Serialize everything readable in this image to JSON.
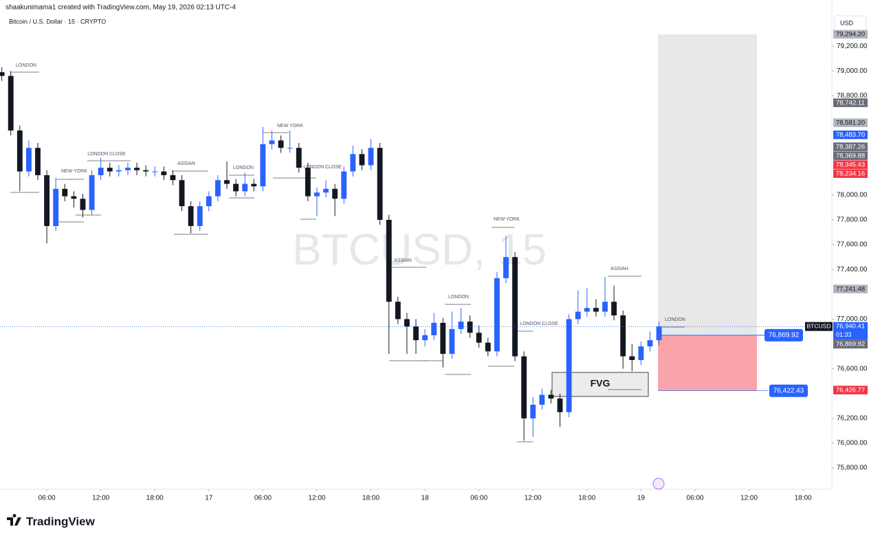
{
  "header": {
    "credit": "shaakunimama1 created with TradingView.com, May 19, 2026 02:13 UTC-4",
    "brand": "TradingView"
  },
  "chart_data": {
    "type": "candlestick",
    "title": "Bitcoin / U.S. Dollar · 15 · CRYPTO",
    "watermark": "BTCUSD, 15",
    "currency": "USD",
    "up_color": "#2962ff",
    "down_color": "#131722",
    "x": [
      1,
      2,
      3,
      4,
      5,
      6,
      7,
      8,
      9,
      10,
      11,
      12,
      13,
      14,
      15,
      16,
      17,
      18,
      19,
      20,
      21,
      22,
      23,
      24,
      25,
      26,
      27,
      28,
      29,
      30,
      31,
      32,
      33,
      34,
      35,
      36,
      37,
      38,
      39,
      40,
      41,
      42,
      43,
      44,
      45,
      46,
      47,
      48,
      49,
      50,
      51,
      52,
      53,
      54,
      55,
      56,
      57,
      58,
      59,
      60,
      61,
      62,
      63,
      64,
      65,
      66,
      67,
      68,
      69,
      70,
      71,
      72,
      73,
      74
    ],
    "open": [
      78990,
      78960,
      78520,
      78190,
      78380,
      78160,
      77750,
      78050,
      77990,
      77970,
      77880,
      78160,
      78220,
      78190,
      78200,
      78220,
      78200,
      78190,
      78190,
      78160,
      78120,
      77910,
      77750,
      77910,
      77990,
      78120,
      78090,
      78030,
      78090,
      78070,
      78410,
      78440,
      78380,
      78380,
      78220,
      77990,
      78020,
      78050,
      77970,
      78190,
      78330,
      78240,
      78380,
      77800,
      77140,
      77000,
      76940,
      76830,
      76870,
      76970,
      76720,
      76920,
      76980,
      76890,
      76810,
      76740,
      77330,
      77500,
      76700,
      76200,
      76310,
      76390,
      76360,
      76250,
      77000,
      77060,
      77090,
      77060,
      77140,
      77030,
      76700,
      76670,
      76780,
      76830
    ],
    "high": [
      79030,
      79000,
      78560,
      78440,
      78420,
      78200,
      78140,
      78090,
      78030,
      78010,
      78200,
      78300,
      78260,
      78240,
      78260,
      78260,
      78240,
      78230,
      78230,
      78200,
      78160,
      77950,
      77950,
      78030,
      78160,
      78270,
      78130,
      78180,
      78130,
      78550,
      78520,
      78480,
      78520,
      78420,
      78260,
      78060,
      78120,
      78090,
      78230,
      78400,
      78370,
      78450,
      78420,
      77840,
      77180,
      77050,
      77000,
      76920,
      77050,
      77010,
      77060,
      77090,
      77030,
      76950,
      76850,
      77380,
      77670,
      77540,
      76740,
      76370,
      76440,
      76430,
      76400,
      77040,
      77230,
      77250,
      77160,
      77340,
      77270,
      77070,
      76800,
      76820,
      76900,
      76980
    ],
    "low": [
      78920,
      78480,
      78030,
      78150,
      78120,
      77610,
      77710,
      77950,
      77900,
      77820,
      77840,
      78120,
      78150,
      78150,
      78160,
      78160,
      78150,
      78150,
      78120,
      78080,
      77870,
      77690,
      77710,
      77870,
      77950,
      78050,
      77990,
      77990,
      78030,
      78030,
      78370,
      78340,
      78340,
      78180,
      77950,
      77830,
      77980,
      77830,
      77930,
      78150,
      78200,
      78200,
      77760,
      76720,
      76960,
      76720,
      76720,
      76780,
      76830,
      76610,
      76680,
      76880,
      76850,
      76770,
      76700,
      76700,
      77290,
      76660,
      76020,
      76050,
      76270,
      76320,
      76130,
      76210,
      76960,
      77020,
      77020,
      77020,
      76990,
      76600,
      76580,
      76630,
      76740,
      76790
    ],
    "close": [
      78960,
      78520,
      78190,
      78380,
      78160,
      77750,
      78050,
      77990,
      77970,
      77880,
      78160,
      78220,
      78190,
      78200,
      78220,
      78200,
      78190,
      78190,
      78160,
      78120,
      77910,
      77750,
      77910,
      77990,
      78120,
      78090,
      78030,
      78090,
      78070,
      78410,
      78440,
      78380,
      78380,
      78220,
      77990,
      78020,
      78050,
      77970,
      78190,
      78330,
      78240,
      78380,
      77800,
      77140,
      77000,
      76940,
      76830,
      76870,
      76970,
      76720,
      76920,
      76980,
      76890,
      76810,
      76740,
      77330,
      77500,
      76700,
      76200,
      76310,
      76390,
      76360,
      76250,
      77000,
      77060,
      77090,
      77060,
      77140,
      77030,
      76700,
      76670,
      76780,
      76830,
      76940
    ],
    "xlim": [
      0.8,
      93.2
    ],
    "xticks": [
      {
        "value": 6,
        "label": "06:00"
      },
      {
        "value": 12,
        "label": "12:00"
      },
      {
        "value": 18,
        "label": "18:00"
      },
      {
        "value": 24,
        "label": "17"
      },
      {
        "value": 30,
        "label": "06:00"
      },
      {
        "value": 36,
        "label": "12:00"
      },
      {
        "value": 42,
        "label": "18:00"
      },
      {
        "value": 48,
        "label": "18"
      },
      {
        "value": 54,
        "label": "06:00"
      },
      {
        "value": 60,
        "label": "12:00"
      },
      {
        "value": 66,
        "label": "18:00"
      },
      {
        "value": 72,
        "label": "19"
      },
      {
        "value": 78,
        "label": "06:00"
      },
      {
        "value": 84,
        "label": "12:00"
      },
      {
        "value": 90,
        "label": "18:00"
      }
    ],
    "ylim": [
      75640,
      79450
    ],
    "yticks": [
      {
        "value": 79200,
        "label": "79,200.00"
      },
      {
        "value": 79000,
        "label": "79,000.00"
      },
      {
        "value": 78800,
        "label": "78,800.00"
      },
      {
        "value": 78000,
        "label": "78,000.00"
      },
      {
        "value": 77800,
        "label": "77,800.00"
      },
      {
        "value": 77600,
        "label": "77,600.00"
      },
      {
        "value": 77400,
        "label": "77,400.00"
      },
      {
        "value": 77000,
        "label": "77,000.00"
      },
      {
        "value": 76600,
        "label": "76,600.00"
      },
      {
        "value": 76200,
        "label": "76,200.00"
      },
      {
        "value": 76000,
        "label": "76,000.00"
      },
      {
        "value": 75800,
        "label": "75,800.00"
      }
    ],
    "price_labels": [
      {
        "value": 79294.2,
        "label": "79,294.20",
        "color": "#b2b5be",
        "text_color": "#131722"
      },
      {
        "value": 78742.11,
        "label": "78,742.11",
        "color": "#6a6d78",
        "text_color": "#ffffff"
      },
      {
        "value": 78581.2,
        "label": "78,581.20",
        "color": "#b2b5be",
        "text_color": "#131722"
      },
      {
        "value": 78483.7,
        "label": "78,483.70",
        "color": "#2962ff",
        "text_color": "#ffffff"
      },
      {
        "value": 78387.26,
        "label": "78,387.26",
        "color": "#6a6d78",
        "text_color": "#ffffff"
      },
      {
        "value": 78369.88,
        "label": "78,369.88",
        "color": "#6a6d78",
        "text_color": "#ffffff"
      },
      {
        "value": 78345.43,
        "label": "78,345.43",
        "color": "#f23645",
        "text_color": "#ffffff"
      },
      {
        "value": 78234.16,
        "label": "78,234.16",
        "color": "#f23645",
        "text_color": "#ffffff"
      },
      {
        "value": 77241.48,
        "label": "77,241.48",
        "color": "#b2b5be",
        "text_color": "#131722"
      },
      {
        "value": 76869.92,
        "label": "76,869.92",
        "color": "#6a6d78",
        "text_color": "#ffffff"
      },
      {
        "value": 76426.77,
        "label": "76,426.77",
        "color": "#f23645",
        "text_color": "#ffffff"
      }
    ],
    "last_price": {
      "value": 76940.41,
      "label": "76,940.41",
      "countdown": "01:33",
      "symbol": "BTCUSD"
    },
    "position": {
      "target": 79294.2,
      "entry": 76869.92,
      "entry_label": "76,869.92",
      "stop": 76422.43,
      "stop_label": "76,422.43"
    },
    "annotations": [
      "LONDON",
      "NEW YORK",
      "LONDON CLOSE",
      "ASSIAN",
      "LONDON",
      "NEW YORK",
      "LONDON CLOSE",
      "ASSIAN",
      "LONDON",
      "NEW YORK",
      "LONDON CLOSE",
      "ASSIAH",
      "LONDON"
    ],
    "fvg_label": "FVG"
  }
}
